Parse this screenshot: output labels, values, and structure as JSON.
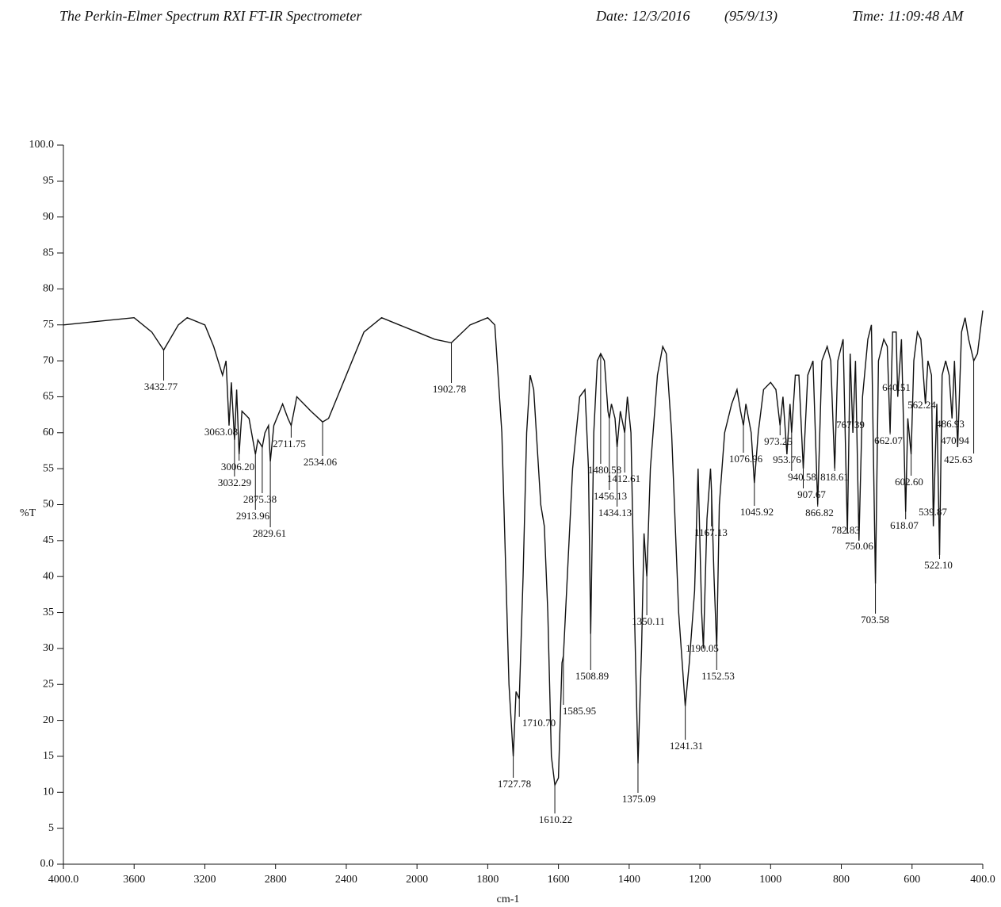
{
  "chart_data": {
    "type": "line",
    "title": "The Perkin-Elmer Spectrum RXI FT-IR Spectrometer",
    "date": "Date: 12/3/2016",
    "record": "(95/9/13)",
    "time": "Time: 11:09:48 AM",
    "x_label": "cm-1",
    "y_label": "%T",
    "color": "#111111",
    "xlim": [
      4000,
      400
    ],
    "xticks": [
      {
        "value": 4000,
        "label": "4000.0"
      },
      3600,
      3200,
      2800,
      2400,
      2000,
      1800,
      1600,
      1400,
      1200,
      1000,
      800,
      600,
      {
        "value": 400,
        "label": "400.0"
      }
    ],
    "ylim": [
      0,
      100
    ],
    "yticks": [
      {
        "value": 0,
        "label": "0.0"
      },
      5,
      10,
      15,
      20,
      25,
      30,
      35,
      40,
      45,
      50,
      55,
      60,
      65,
      70,
      75,
      80,
      85,
      90,
      95,
      {
        "value": 100,
        "label": "100.0"
      }
    ],
    "x": [
      4000,
      3800,
      3600,
      3500,
      3432.77,
      3350,
      3300,
      3200,
      3150,
      3100,
      3080,
      3063.08,
      3050,
      3032.29,
      3020,
      3006.2,
      2990,
      2950,
      2913.96,
      2900,
      2875.38,
      2860,
      2840,
      2829.61,
      2810,
      2760,
      2730,
      2711.75,
      2680,
      2640,
      2600,
      2534.06,
      2500,
      2400,
      2300,
      2200,
      2100,
      2000,
      1950,
      1902.78,
      1850,
      1800,
      1780,
      1760,
      1740,
      1727.78,
      1720,
      1710.7,
      1700,
      1690,
      1680,
      1670,
      1650,
      1640,
      1630,
      1620,
      1610.22,
      1600,
      1590,
      1585.95,
      1575,
      1560,
      1540,
      1525,
      1515,
      1508.89,
      1500,
      1490,
      1480.58,
      1470,
      1460,
      1456.13,
      1450,
      1440,
      1434.13,
      1425,
      1412.61,
      1405,
      1395,
      1385,
      1375.09,
      1365,
      1358,
      1350.11,
      1340,
      1320,
      1305,
      1295,
      1280,
      1260,
      1241.31,
      1230,
      1215,
      1205,
      1195,
      1190.05,
      1180,
      1170,
      1167.13,
      1160,
      1152.53,
      1145,
      1130,
      1110,
      1095,
      1085,
      1076.96,
      1070,
      1055,
      1045.92,
      1035,
      1020,
      1000,
      985,
      973.25,
      965,
      953.76,
      945,
      940.58,
      930,
      920,
      907.67,
      895,
      880,
      866.82,
      855,
      840,
      830,
      818.61,
      810,
      795,
      782.83,
      775,
      767.39,
      760,
      750.06,
      740,
      725,
      715,
      703.58,
      695,
      680,
      670,
      662.07,
      655,
      645,
      640.51,
      630,
      618.07,
      612,
      602.6,
      595,
      585,
      575,
      562.24,
      555,
      545,
      539.87,
      530,
      522.1,
      515,
      505,
      495,
      486.93,
      480,
      470.94,
      460,
      450,
      440,
      425.63,
      415,
      400
    ],
    "values": [
      75,
      75.5,
      76,
      74,
      71.5,
      75,
      76,
      75,
      72,
      68,
      70,
      61,
      67,
      59,
      66,
      57,
      63,
      62,
      57,
      59,
      58,
      60,
      61,
      56,
      61,
      64,
      62,
      61,
      65,
      64,
      63,
      61.5,
      62,
      68,
      74,
      76,
      75,
      74,
      73,
      72.5,
      75,
      76,
      75,
      60,
      25,
      15,
      24,
      23,
      40,
      60,
      68,
      66,
      50,
      47,
      35,
      15,
      11,
      12,
      28,
      29,
      40,
      55,
      65,
      66,
      55,
      32,
      60,
      70,
      71,
      70,
      63,
      62,
      64,
      62,
      58,
      63,
      60,
      65,
      60,
      35,
      14,
      30,
      46,
      40,
      55,
      68,
      72,
      71,
      60,
      35,
      22,
      28,
      38,
      55,
      35,
      30,
      48,
      55,
      52,
      40,
      30,
      50,
      60,
      64,
      66,
      63,
      61,
      64,
      60,
      53,
      60,
      66,
      67,
      66,
      61,
      65,
      57,
      64,
      60,
      68,
      68,
      55,
      68,
      70,
      50,
      70,
      72,
      70,
      55,
      70,
      73,
      46,
      71,
      60,
      70,
      45,
      65,
      73,
      75,
      39,
      70,
      73,
      72,
      60,
      74,
      74,
      65,
      73,
      49,
      62,
      57,
      70,
      74,
      73,
      64,
      70,
      68,
      47,
      64,
      43,
      68,
      70,
      68,
      62,
      70,
      58,
      74,
      76,
      73,
      70,
      71,
      77
    ],
    "peaks": [
      3432.77,
      3063.08,
      3006.2,
      3032.29,
      2875.38,
      2913.96,
      2829.61,
      2711.75,
      2534.06,
      1902.78,
      1727.78,
      1710.7,
      1610.22,
      1585.95,
      1508.89,
      1480.58,
      1456.13,
      1434.13,
      1412.61,
      1375.09,
      1350.11,
      1241.31,
      1190.05,
      1167.13,
      1152.53,
      1076.96,
      1045.92,
      973.25,
      953.76,
      940.58,
      907.67,
      866.82,
      818.61,
      782.83,
      767.39,
      750.06,
      703.58,
      662.07,
      640.51,
      618.07,
      602.6,
      562.24,
      539.87,
      522.1,
      486.93,
      470.94,
      425.63
    ],
    "peak_labels": [
      "3432.77",
      "3063.08",
      "3006.20",
      "3032.29",
      "2875.38",
      "2913.96",
      "2829.61",
      "2711.75",
      "2534.06",
      "1902.78",
      "1727.78",
      "1710.70",
      "1610.22",
      "1585.95",
      "1508.89",
      "1480.58",
      "1456.13",
      "1434.13",
      "1412.61",
      "1375.09",
      "1350.11",
      "1241.31",
      "1190.05",
      "1167.13",
      "1152.53",
      "1076.96",
      "1045.92",
      "973.25",
      "953.76",
      "940.58",
      "907.67",
      "866.82",
      "818.61",
      "782.83",
      "767.39",
      "750.06",
      "703.58",
      "662.07",
      "640.51",
      "618.07",
      "602.60",
      "562.24",
      "539.87",
      "522.10",
      "486.93",
      "470.94",
      "425.63"
    ]
  }
}
